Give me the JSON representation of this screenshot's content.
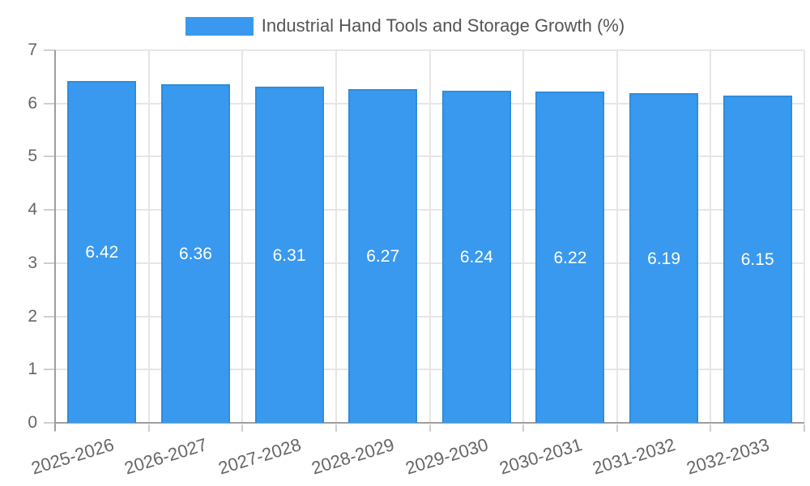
{
  "legend": {
    "label": "Industrial Hand Tools and Storage Growth (%)"
  },
  "colors": {
    "bar_fill": "#3999ee",
    "bar_border": "#2e8ddd",
    "grid": "#e6e6e6",
    "axis": "#9e9e9e",
    "tick_mark": "#cfcfcf",
    "tick_text": "#666666",
    "legend_text": "#555555",
    "value_text": "#ffffff",
    "background": "#ffffff"
  },
  "chart_data": {
    "type": "bar",
    "title": "Industrial Hand Tools and Storage Growth (%)",
    "categories": [
      "2025-2026",
      "2026-2027",
      "2027-2028",
      "2028-2029",
      "2029-2030",
      "2030-2031",
      "2031-2032",
      "2032-2033"
    ],
    "values": [
      6.42,
      6.36,
      6.31,
      6.27,
      6.24,
      6.22,
      6.19,
      6.15
    ],
    "value_labels": [
      "6.42",
      "6.36",
      "6.31",
      "6.27",
      "6.24",
      "6.22",
      "6.19",
      "6.15"
    ],
    "xlabel": "",
    "ylabel": "",
    "ylim": [
      0,
      7
    ],
    "yticks": [
      0,
      1,
      2,
      3,
      4,
      5,
      6,
      7
    ],
    "grid": true,
    "legend_position": "top",
    "x_label_rotation_deg": -17
  }
}
